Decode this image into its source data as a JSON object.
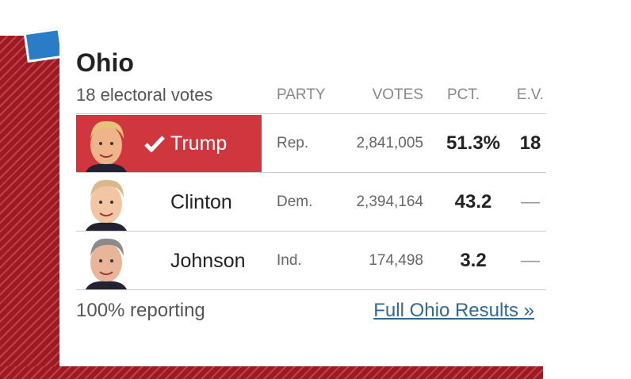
{
  "header": {
    "title": "Ohio",
    "subtitle": "18 electoral votes"
  },
  "table": {
    "columns": [
      "PARTY",
      "VOTES",
      "PCT.",
      "E.V."
    ],
    "rows": [
      {
        "candidate": "Trump",
        "party": "Rep.",
        "votes": "2,841,005",
        "pct": "51.3%",
        "ev": "18",
        "winner": true
      },
      {
        "candidate": "Clinton",
        "party": "Dem.",
        "votes": "2,394,164",
        "pct": "43.2",
        "ev": "—",
        "winner": false
      },
      {
        "candidate": "Johnson",
        "party": "Ind.",
        "votes": "174,498",
        "pct": "3.2",
        "ev": "—",
        "winner": false
      }
    ]
  },
  "footer": {
    "reporting": "100% reporting",
    "link": "Full Ohio Results »"
  }
}
